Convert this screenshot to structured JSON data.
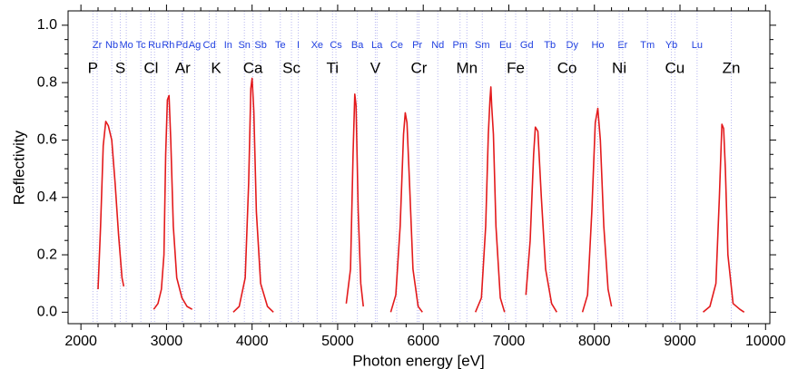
{
  "chart_data": {
    "type": "line",
    "x_label": "Photon energy [eV]",
    "y_label": "Reflectivity",
    "xlim": [
      1850,
      10050
    ],
    "ylim": [
      -0.04,
      1.05
    ],
    "xticks": [
      2000,
      3000,
      4000,
      5000,
      6000,
      7000,
      8000,
      9000,
      10000
    ],
    "yticks": [
      {
        "value": 0,
        "label": "0.0"
      },
      0.2,
      0.4,
      0.6,
      0.8,
      {
        "value": 1,
        "label": "1.0"
      }
    ],
    "edge_line_color": "#b8b8f0",
    "l_edges": {
      "color": "#1f3fe0",
      "labels": [
        "Zr",
        "Nb",
        "Mo",
        "Tc",
        "Ru",
        "Rh",
        "Pd",
        "Ag",
        "Cd",
        "In",
        "Sn",
        "Sb",
        "Te",
        "I",
        "Xe",
        "Cs",
        "Ba",
        "La",
        "Ce",
        "Pr",
        "Nd",
        "Pm",
        "Sm",
        "Eu",
        "Gd",
        "Tb",
        "Dy",
        "Ho",
        "Er",
        "Tm",
        "Yb",
        "Lu"
      ],
      "x": [
        2190,
        2360,
        2530,
        2700,
        2860,
        3020,
        3180,
        3330,
        3500,
        3720,
        3910,
        4100,
        4330,
        4540,
        4760,
        4980,
        5230,
        5460,
        5690,
        5930,
        6170,
        6430,
        6690,
        6960,
        7210,
        7480,
        7740,
        8040,
        8330,
        8620,
        8900,
        9200
      ]
    },
    "k_edges": {
      "color": "#000000",
      "labels": [
        "P",
        "S",
        "Cl",
        "Ar",
        "K",
        "Ca",
        "Sc",
        "Ti",
        "V",
        "Cr",
        "Mn",
        "Fe",
        "Co",
        "Ni",
        "Cu",
        "Zn"
      ],
      "x": [
        2140,
        2460,
        2820,
        3190,
        3580,
        4010,
        4460,
        4940,
        5440,
        5950,
        6510,
        7080,
        7680,
        8290,
        8940,
        9600
      ]
    },
    "series": [
      {
        "color": "#e31a1c",
        "x": [
          2200,
          2230,
          2260,
          2290,
          2320,
          2360,
          2400,
          2440,
          2480,
          2500,
          2600,
          2850,
          2900,
          2940,
          2970,
          2990,
          3010,
          3030,
          3050,
          3080,
          3120,
          3180,
          3240,
          3300,
          3500,
          3780,
          3850,
          3920,
          3960,
          3985,
          4000,
          4020,
          4050,
          4100,
          4180,
          4250,
          4700,
          5100,
          5150,
          5180,
          5200,
          5215,
          5240,
          5270,
          5300,
          5500,
          5620,
          5680,
          5730,
          5770,
          5790,
          5810,
          5840,
          5880,
          5940,
          5990,
          6300,
          6610,
          6680,
          6730,
          6760,
          6780,
          6790,
          6800,
          6820,
          6850,
          6900,
          6950,
          7100,
          7200,
          7250,
          7290,
          7310,
          7340,
          7380,
          7430,
          7500,
          7560,
          7700,
          7860,
          7920,
          7970,
          8010,
          8040,
          8070,
          8110,
          8160,
          8200,
          8800,
          9270,
          9350,
          9420,
          9460,
          9490,
          9510,
          9530,
          9560,
          9620,
          9700,
          9750
        ],
        "values": [
          0.08,
          0.3,
          0.58,
          0.665,
          0.65,
          0.6,
          0.45,
          0.27,
          0.12,
          0.09,
          null,
          0.01,
          0.03,
          0.08,
          0.2,
          0.55,
          0.74,
          0.755,
          0.6,
          0.3,
          0.12,
          0.05,
          0.02,
          0.01,
          null,
          0.0,
          0.02,
          0.12,
          0.45,
          0.78,
          0.815,
          0.7,
          0.35,
          0.1,
          0.02,
          0.0,
          null,
          0.03,
          0.15,
          0.55,
          0.76,
          0.72,
          0.35,
          0.1,
          0.02,
          null,
          0.0,
          0.06,
          0.3,
          0.62,
          0.695,
          0.66,
          0.45,
          0.15,
          0.02,
          0.0,
          null,
          0.0,
          0.05,
          0.3,
          0.62,
          0.74,
          0.785,
          0.72,
          0.62,
          0.3,
          0.05,
          0.0,
          null,
          0.06,
          0.25,
          0.55,
          0.645,
          0.63,
          0.4,
          0.15,
          0.03,
          0.0,
          null,
          0.0,
          0.06,
          0.35,
          0.66,
          0.71,
          0.6,
          0.3,
          0.08,
          0.02,
          null,
          0.0,
          0.02,
          0.1,
          0.4,
          0.655,
          0.64,
          0.5,
          0.2,
          0.03,
          0.01,
          0.0
        ]
      }
    ]
  }
}
